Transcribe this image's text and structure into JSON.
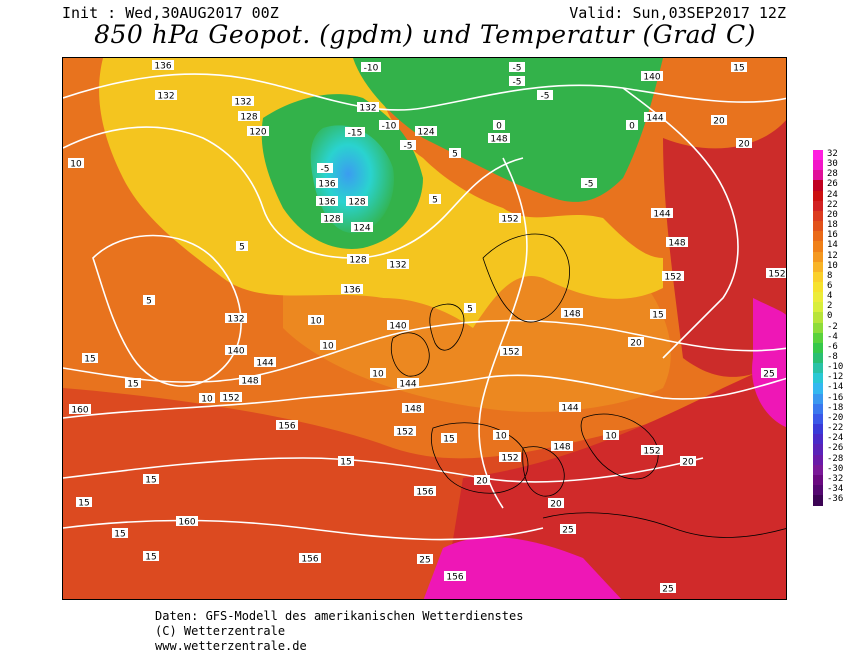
{
  "header": {
    "init": "Init : Wed,30AUG2017 00Z",
    "valid": "Valid: Sun,03SEP2017 12Z",
    "title": "850 hPa Geopot. (gpdm) und Temperatur (Grad C)"
  },
  "map": {
    "geopotential_labels": [
      "136",
      "132",
      "128",
      "120",
      "124",
      "136",
      "128",
      "124",
      "128",
      "132",
      "136",
      "132",
      "140",
      "144",
      "148",
      "152",
      "156",
      "160",
      "140",
      "144",
      "148",
      "152",
      "144",
      "148",
      "152",
      "156",
      "160",
      "156"
    ],
    "temperature_labels": [
      "-10",
      "-5",
      "-15",
      "-10",
      "-5",
      "-5",
      "0",
      "5",
      "10",
      "15",
      "20",
      "25",
      "5",
      "10",
      "15",
      "20",
      "25",
      "-5",
      "0",
      "5",
      "10",
      "15",
      "20",
      "25"
    ],
    "colors": {
      "ocean_warm": "#e8731e",
      "land_hot": "#d4362a",
      "cold": "#33b24a",
      "very_cold": "#2ad3cf",
      "coldest": "#3b9cf0",
      "mild": "#f4c51f",
      "pink": "#ee17b6"
    }
  },
  "legend": {
    "values": [
      "32",
      "30",
      "28",
      "26",
      "24",
      "22",
      "20",
      "18",
      "16",
      "14",
      "12",
      "10",
      "8",
      "6",
      "4",
      "2",
      "0",
      "-2",
      "-4",
      "-6",
      "-8",
      "-10",
      "-12",
      "-14",
      "-16",
      "-18",
      "-20",
      "-22",
      "-24",
      "-26",
      "-28",
      "-30",
      "-32",
      "-34",
      "-36"
    ],
    "colors": [
      "#ff1fe0",
      "#f215c8",
      "#e01098",
      "#c00020",
      "#cc1010",
      "#d22222",
      "#dc3b1e",
      "#e2521a",
      "#ea6a18",
      "#f08018",
      "#f49820",
      "#f8b428",
      "#fad02c",
      "#f6e22e",
      "#ecec3a",
      "#d8ee3c",
      "#b8e43a",
      "#8edc3a",
      "#5ad23c",
      "#36c84a",
      "#2abf72",
      "#2ac2a6",
      "#2ac8d4",
      "#34b8f0",
      "#3a98f0",
      "#3a78ee",
      "#3a58e8",
      "#3a3ad8",
      "#4a2ac8",
      "#5a22b8",
      "#6a1aa8",
      "#7a1898",
      "#6a0a80",
      "#540870",
      "#3c0454"
    ]
  },
  "footer": {
    "line1": "Daten: GFS-Modell des amerikanischen Wetterdienstes",
    "line2": "(C) Wetterzentrale",
    "line3": "www.wetterzentrale.de"
  }
}
